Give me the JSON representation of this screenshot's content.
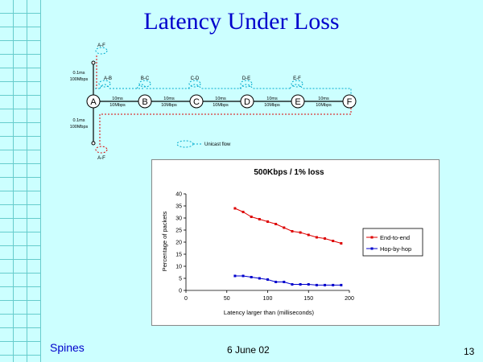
{
  "slide": {
    "title": "Latency Under Loss",
    "footer_left": "Spines",
    "footer_date": "6 June 02",
    "page_number": "13"
  },
  "network": {
    "nodes": [
      "A",
      "B",
      "C",
      "D",
      "E",
      "F"
    ],
    "link_label_top": "10ms",
    "link_label_bottom": "10Mbps",
    "access_label_top": "0.1ms",
    "access_label_bottom": "100Mbps",
    "flows_top": [
      "A-F",
      "A-B",
      "B-C",
      "C-D",
      "D-E",
      "E-F"
    ],
    "flow_bottom": "A-F",
    "legend": "Unicast flow"
  },
  "colors": {
    "background": "#ccffff",
    "grid": "#66cccc",
    "title": "#0000cc",
    "end_to_end": "#dd0000",
    "hop_by_hop": "#0000cc",
    "topology_blue": "#00aacc",
    "topology_red": "#dd0000"
  },
  "chart_data": {
    "type": "line",
    "title": "500Kbps / 1% loss",
    "xlabel": "Latency larger than (milliseconds)",
    "ylabel": "Percentage of packets",
    "xlim": [
      0,
      200
    ],
    "ylim": [
      0,
      40
    ],
    "xticks": [
      0,
      50,
      100,
      150,
      200
    ],
    "yticks": [
      0,
      5,
      10,
      15,
      20,
      25,
      30,
      35,
      40
    ],
    "legend_position": "right",
    "series": [
      {
        "name": "End-to-end",
        "x": [
          60,
          70,
          80,
          90,
          100,
          110,
          120,
          130,
          140,
          150,
          160,
          170,
          180,
          190
        ],
        "y": [
          34,
          32.5,
          30.5,
          29.5,
          28.5,
          27.5,
          26,
          24.5,
          24,
          23,
          22,
          21.5,
          20.5,
          19.5
        ]
      },
      {
        "name": "Hop-by-hop",
        "x": [
          60,
          70,
          80,
          90,
          100,
          110,
          120,
          130,
          140,
          150,
          160,
          170,
          180,
          190
        ],
        "y": [
          6,
          6,
          5.5,
          5,
          4.5,
          3.5,
          3.5,
          2.5,
          2.5,
          2.5,
          2.2,
          2.2,
          2.2,
          2.2
        ]
      }
    ]
  }
}
